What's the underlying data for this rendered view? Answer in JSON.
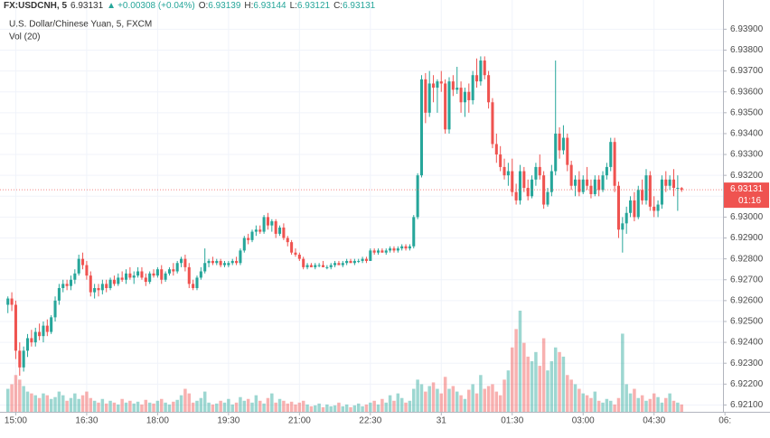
{
  "chart_data": {
    "type": "candlestick",
    "symbol": "FX:USDCNH, 5",
    "change": "+0.00308 (+0.04%)",
    "ohlc_labels": [
      "O:",
      "H:",
      "L:",
      "C:"
    ],
    "title": "U.S. Dollar/Chinese Yuan, 5, FXCM",
    "volume_label": "Vol (20)",
    "countdown": "01:16",
    "up_color": "#26a69a",
    "down_color": "#ef5350",
    "grid": true,
    "ylim": [
      6.9205,
      6.9404
    ],
    "yticks": [
      {
        "value": 6.921,
        "label": "6.92100"
      },
      {
        "value": 6.922,
        "label": "6.92200"
      },
      {
        "value": 6.923,
        "label": "6.92300"
      },
      {
        "value": 6.924,
        "label": "6.92400"
      },
      {
        "value": 6.925,
        "label": "6.92500"
      },
      {
        "value": 6.926,
        "label": "6.92600"
      },
      {
        "value": 6.927,
        "label": "6.92700"
      },
      {
        "value": 6.928,
        "label": "6.92800"
      },
      {
        "value": 6.929,
        "label": "6.92900"
      },
      {
        "value": 6.93,
        "label": "6.93000"
      },
      {
        "value": 6.931,
        "label": "6.93100"
      },
      {
        "value": 6.932,
        "label": "6.93200"
      },
      {
        "value": 6.933,
        "label": "6.93300"
      },
      {
        "value": 6.934,
        "label": "6.93400"
      },
      {
        "value": 6.935,
        "label": "6.93500"
      },
      {
        "value": 6.936,
        "label": "6.93600"
      },
      {
        "value": 6.937,
        "label": "6.93700"
      },
      {
        "value": 6.938,
        "label": "6.93800"
      },
      {
        "value": 6.939,
        "label": "6.93900"
      }
    ],
    "xlim": [
      -2,
      181.5
    ],
    "xticks": [
      {
        "value": 2,
        "label": "15:00"
      },
      {
        "value": 20,
        "label": "16:30"
      },
      {
        "value": 38,
        "label": "18:00"
      },
      {
        "value": 56,
        "label": "19:30"
      },
      {
        "value": 74,
        "label": "21:00"
      },
      {
        "value": 92,
        "label": "22:30"
      },
      {
        "value": 110,
        "label": "31"
      },
      {
        "value": 128,
        "label": "01:30"
      },
      {
        "value": 146,
        "label": "03:00"
      },
      {
        "value": 164,
        "label": "04:30"
      },
      {
        "value": 182,
        "label": "06:"
      }
    ],
    "candles": [
      [
        6.9258,
        6.9262,
        6.9254,
        6.9261
      ],
      [
        6.9261,
        6.9264,
        6.9255,
        6.9258
      ],
      [
        6.9258,
        6.926,
        6.9232,
        6.9236
      ],
      [
        6.9236,
        6.924,
        6.9224,
        6.9228
      ],
      [
        6.9228,
        6.9238,
        6.9226,
        6.9236
      ],
      [
        6.9236,
        6.9244,
        6.9233,
        6.9242
      ],
      [
        6.9242,
        6.9246,
        6.9238,
        6.924
      ],
      [
        6.924,
        6.9247,
        6.9238,
        6.9245
      ],
      [
        6.9245,
        6.9249,
        6.9241,
        6.9243
      ],
      [
        6.9243,
        6.925,
        6.924,
        6.9248
      ],
      [
        6.9248,
        6.9251,
        6.9243,
        6.9245
      ],
      [
        6.9245,
        6.9253,
        6.9244,
        6.9252
      ],
      [
        6.9252,
        6.9262,
        6.925,
        6.926
      ],
      [
        6.926,
        6.9268,
        6.9258,
        6.9266
      ],
      [
        6.9266,
        6.927,
        6.9264,
        6.9268
      ],
      [
        6.9268,
        6.927,
        6.9265,
        6.9267
      ],
      [
        6.9267,
        6.9272,
        6.9265,
        6.927
      ],
      [
        6.927,
        6.9275,
        6.9268,
        6.9273
      ],
      [
        6.9273,
        6.9282,
        6.9272,
        6.928
      ],
      [
        6.928,
        6.9283,
        6.9275,
        6.9277
      ],
      [
        6.9277,
        6.9279,
        6.927,
        6.9272
      ],
      [
        6.9272,
        6.9274,
        6.9262,
        6.9264
      ],
      [
        6.9264,
        6.9268,
        6.9261,
        6.9266
      ],
      [
        6.9266,
        6.9268,
        6.9262,
        6.9265
      ],
      [
        6.9265,
        6.927,
        6.9263,
        6.9268
      ],
      [
        6.9268,
        6.927,
        6.9264,
        6.9266
      ],
      [
        6.9266,
        6.9271,
        6.9265,
        6.927
      ],
      [
        6.927,
        6.9272,
        6.9267,
        6.9268
      ],
      [
        6.9268,
        6.9273,
        6.9267,
        6.9271
      ],
      [
        6.9271,
        6.9274,
        6.9269,
        6.927
      ],
      [
        6.927,
        6.9275,
        6.9268,
        6.9273
      ],
      [
        6.9273,
        6.9276,
        6.927,
        6.9271
      ],
      [
        6.9271,
        6.9274,
        6.9268,
        6.9272
      ],
      [
        6.9272,
        6.9276,
        6.9271,
        6.9274
      ],
      [
        6.9274,
        6.9276,
        6.927,
        6.9271
      ],
      [
        6.9271,
        6.9273,
        6.9267,
        6.9269
      ],
      [
        6.9269,
        6.9274,
        6.9268,
        6.9273
      ],
      [
        6.9273,
        6.9275,
        6.9271,
        6.9272
      ],
      [
        6.9272,
        6.9276,
        6.9271,
        6.9275
      ],
      [
        6.9275,
        6.9277,
        6.9268,
        6.927
      ],
      [
        6.927,
        6.9274,
        6.9269,
        6.9273
      ],
      [
        6.9273,
        6.9276,
        6.9272,
        6.9275
      ],
      [
        6.9275,
        6.9278,
        6.9272,
        6.9274
      ],
      [
        6.9274,
        6.9279,
        6.9273,
        6.9278
      ],
      [
        6.9278,
        6.9281,
        6.9276,
        6.928
      ],
      [
        6.928,
        6.9282,
        6.9274,
        6.9276
      ],
      [
        6.9276,
        6.9278,
        6.9266,
        6.9268
      ],
      [
        6.9268,
        6.927,
        6.9265,
        6.9266
      ],
      [
        6.9266,
        6.9272,
        6.9265,
        6.9271
      ],
      [
        6.9271,
        6.9276,
        6.927,
        6.9274
      ],
      [
        6.9274,
        6.9285,
        6.9273,
        6.9278
      ],
      [
        6.9278,
        6.928,
        6.9276,
        6.9279
      ],
      [
        6.9279,
        6.9281,
        6.9277,
        6.9278
      ],
      [
        6.9278,
        6.928,
        6.9277,
        6.9279
      ],
      [
        6.9279,
        6.928,
        6.9276,
        6.9277
      ],
      [
        6.9277,
        6.9279,
        6.9276,
        6.9278
      ],
      [
        6.9277,
        6.9279,
        6.9276,
        6.9278
      ],
      [
        6.9278,
        6.928,
        6.9277,
        6.9279
      ],
      [
        6.9279,
        6.9281,
        6.9277,
        6.9278
      ],
      [
        6.9278,
        6.9285,
        6.9277,
        6.9284
      ],
      [
        6.9284,
        6.9291,
        6.9283,
        6.929
      ],
      [
        6.929,
        6.9292,
        6.9287,
        6.9289
      ],
      [
        6.9289,
        6.9294,
        6.9288,
        6.9293
      ],
      [
        6.9293,
        6.9296,
        6.9291,
        6.9294
      ],
      [
        6.9294,
        6.9296,
        6.9292,
        6.9293
      ],
      [
        6.9293,
        6.9301,
        6.9292,
        6.93
      ],
      [
        6.93,
        6.9302,
        6.9294,
        6.9296
      ],
      [
        6.9296,
        6.9299,
        6.9293,
        6.9298
      ],
      [
        6.9298,
        6.9299,
        6.929,
        6.9292
      ],
      [
        6.9292,
        6.9296,
        6.9291,
        6.9295
      ],
      [
        6.9295,
        6.9297,
        6.9289,
        6.929
      ],
      [
        6.929,
        6.9291,
        6.9286,
        6.9288
      ],
      [
        6.9288,
        6.9289,
        6.9282,
        6.9283
      ],
      [
        6.9283,
        6.9285,
        6.9281,
        6.9282
      ],
      [
        6.9282,
        6.9283,
        6.9279,
        6.928
      ],
      [
        6.928,
        6.9281,
        6.9275,
        6.9276
      ],
      [
        6.9276,
        6.9278,
        6.9275,
        6.9277
      ],
      [
        6.9277,
        6.9278,
        6.9276,
        6.9276
      ],
      [
        6.9276,
        6.9278,
        6.9275,
        6.9277
      ],
      [
        6.9277,
        6.9278,
        6.9276,
        6.9277
      ],
      [
        6.9277,
        6.9279,
        6.9276,
        6.9276
      ],
      [
        6.9276,
        6.9277,
        6.9275,
        6.9276
      ],
      [
        6.9276,
        6.9278,
        6.9275,
        6.9277
      ],
      [
        6.9277,
        6.9279,
        6.9276,
        6.9278
      ],
      [
        6.9278,
        6.9279,
        6.9277,
        6.9277
      ],
      [
        6.9277,
        6.9279,
        6.9276,
        6.9278
      ],
      [
        6.9278,
        6.928,
        6.9277,
        6.9279
      ],
      [
        6.9279,
        6.928,
        6.9278,
        6.9278
      ],
      [
        6.9278,
        6.928,
        6.9277,
        6.9279
      ],
      [
        6.9279,
        6.928,
        6.9278,
        6.9279
      ],
      [
        6.9279,
        6.9281,
        6.9278,
        6.928
      ],
      [
        6.928,
        6.9281,
        6.9278,
        6.9279
      ],
      [
        6.9279,
        6.9285,
        6.9279,
        6.9284
      ],
      [
        6.9284,
        6.9285,
        6.9282,
        6.9283
      ],
      [
        6.9283,
        6.9285,
        6.9282,
        6.9284
      ],
      [
        6.9284,
        6.9285,
        6.9283,
        6.9283
      ],
      [
        6.9283,
        6.9285,
        6.9282,
        6.9284
      ],
      [
        6.9284,
        6.9286,
        6.9283,
        6.9285
      ],
      [
        6.9285,
        6.9286,
        6.9283,
        6.9284
      ],
      [
        6.9284,
        6.9286,
        6.9283,
        6.9285
      ],
      [
        6.9285,
        6.9287,
        6.9284,
        6.9286
      ],
      [
        6.9286,
        6.9287,
        6.9284,
        6.9285
      ],
      [
        6.9285,
        6.9287,
        6.9284,
        6.9286
      ],
      [
        6.9286,
        6.9301,
        6.9285,
        6.93
      ],
      [
        6.93,
        6.9321,
        6.9299,
        6.932
      ],
      [
        6.932,
        6.9368,
        6.9319,
        6.9366
      ],
      [
        6.9366,
        6.9369,
        6.9345,
        6.935
      ],
      [
        6.935,
        6.937,
        6.9348,
        6.9364
      ],
      [
        6.9364,
        6.9368,
        6.9355,
        6.9362
      ],
      [
        6.9362,
        6.9366,
        6.935,
        6.9365
      ],
      [
        6.9365,
        6.937,
        6.936,
        6.9364
      ],
      [
        6.9364,
        6.9366,
        6.934,
        6.9342
      ],
      [
        6.9342,
        6.9367,
        6.934,
        6.9365
      ],
      [
        6.9365,
        6.9368,
        6.9358,
        6.9361
      ],
      [
        6.9361,
        6.9372,
        6.9359,
        6.9362
      ],
      [
        6.9362,
        6.9365,
        6.935,
        6.9355
      ],
      [
        6.9355,
        6.9362,
        6.9348,
        6.936
      ],
      [
        6.936,
        6.9364,
        6.935,
        6.9356
      ],
      [
        6.9356,
        6.937,
        6.9354,
        6.9368
      ],
      [
        6.9368,
        6.9376,
        6.9362,
        6.9365
      ],
      [
        6.9365,
        6.9377,
        6.9363,
        6.9375
      ],
      [
        6.9375,
        6.9377,
        6.9366,
        6.9368
      ],
      [
        6.9368,
        6.937,
        6.9352,
        6.9355
      ],
      [
        6.9355,
        6.9357,
        6.9333,
        6.9335
      ],
      [
        6.9335,
        6.934,
        6.9326,
        6.933
      ],
      [
        6.933,
        6.9334,
        6.9322,
        6.9324
      ],
      [
        6.9324,
        6.9328,
        6.9318,
        6.932
      ],
      [
        6.932,
        6.9326,
        6.9315,
        6.9322
      ],
      [
        6.9322,
        6.9328,
        6.931,
        6.9312
      ],
      [
        6.9312,
        6.9316,
        6.9306,
        6.9308
      ],
      [
        6.9308,
        6.9325,
        6.9306,
        6.9322
      ],
      [
        6.9322,
        6.9324,
        6.9312,
        6.9314
      ],
      [
        6.9314,
        6.9318,
        6.9308,
        6.931
      ],
      [
        6.931,
        6.932,
        6.9309,
        6.9318
      ],
      [
        6.9318,
        6.9326,
        6.9315,
        6.9324
      ],
      [
        6.9324,
        6.933,
        6.9318,
        6.932
      ],
      [
        6.932,
        6.9322,
        6.9304,
        6.9306
      ],
      [
        6.9306,
        6.9314,
        6.9305,
        6.9312
      ],
      [
        6.9312,
        6.9325,
        6.931,
        6.9322
      ],
      [
        6.9322,
        6.9375,
        6.932,
        6.934
      ],
      [
        6.934,
        6.9343,
        6.9328,
        6.9332
      ],
      [
        6.9332,
        6.9344,
        6.933,
        6.9338
      ],
      [
        6.9338,
        6.934,
        6.9322,
        6.9325
      ],
      [
        6.9325,
        6.9327,
        6.9313,
        6.9315
      ],
      [
        6.9315,
        6.932,
        6.931,
        6.9318
      ],
      [
        6.9318,
        6.9322,
        6.931,
        6.9312
      ],
      [
        6.9312,
        6.932,
        6.9311,
        6.9318
      ],
      [
        6.9318,
        6.9324,
        6.9313,
        6.9315
      ],
      [
        6.9315,
        6.9318,
        6.9309,
        6.9311
      ],
      [
        6.9311,
        6.932,
        6.931,
        6.9318
      ],
      [
        6.9318,
        6.932,
        6.931,
        6.9313
      ],
      [
        6.9313,
        6.9322,
        6.9312,
        6.932
      ],
      [
        6.932,
        6.9326,
        6.9318,
        6.9324
      ],
      [
        6.9324,
        6.9338,
        6.9322,
        6.9336
      ],
      [
        6.9336,
        6.9338,
        6.9312,
        6.9315
      ],
      [
        6.9315,
        6.9317,
        6.929,
        6.9294
      ],
      [
        6.9294,
        6.93,
        6.9283,
        6.9297
      ],
      [
        6.9297,
        6.9305,
        6.9292,
        6.9302
      ],
      [
        6.9302,
        6.931,
        6.93,
        6.9308
      ],
      [
        6.9308,
        6.9312,
        6.9298,
        6.93
      ],
      [
        6.93,
        6.9315,
        6.9299,
        6.9313
      ],
      [
        6.9313,
        6.9318,
        6.9306,
        6.9308
      ],
      [
        6.9308,
        6.9323,
        6.9306,
        6.932
      ],
      [
        6.932,
        6.9322,
        6.9303,
        6.9305
      ],
      [
        6.9305,
        6.931,
        6.93,
        6.9303
      ],
      [
        6.9303,
        6.9308,
        6.93,
        6.9306
      ],
      [
        6.9306,
        6.932,
        6.9304,
        6.9318
      ],
      [
        6.9318,
        6.9322,
        6.9312,
        6.9315
      ],
      [
        6.9315,
        6.932,
        6.9313,
        6.9318
      ],
      [
        6.9318,
        6.9323,
        6.931,
        6.9314
      ],
      [
        6.9314,
        6.932,
        6.9303,
        6.9314
      ],
      [
        6.93139,
        6.93144,
        6.93121,
        6.93131
      ]
    ],
    "volume": [
      25,
      30,
      40,
      35,
      28,
      22,
      20,
      18,
      15,
      20,
      18,
      14,
      16,
      22,
      18,
      12,
      15,
      20,
      14,
      18,
      22,
      15,
      12,
      10,
      14,
      9,
      12,
      10,
      8,
      14,
      10,
      12,
      9,
      11,
      8,
      13,
      10,
      9,
      12,
      14,
      10,
      8,
      11,
      13,
      18,
      25,
      20,
      10,
      12,
      15,
      22,
      10,
      8,
      9,
      12,
      10,
      14,
      8,
      10,
      16,
      12,
      14,
      10,
      18,
      12,
      9,
      15,
      20,
      10,
      14,
      12,
      9,
      11,
      8,
      10,
      12,
      8,
      6,
      7,
      9,
      5,
      8,
      6,
      7,
      10,
      6,
      8,
      5,
      7,
      9,
      6,
      8,
      10,
      12,
      8,
      14,
      10,
      18,
      12,
      20,
      15,
      10,
      12,
      25,
      35,
      30,
      22,
      28,
      32,
      25,
      20,
      38,
      25,
      28,
      22,
      18,
      14,
      24,
      30,
      20,
      40,
      25,
      28,
      30,
      22,
      18,
      35,
      45,
      70,
      90,
      110,
      75,
      60,
      55,
      65,
      50,
      80,
      45,
      55,
      70,
      65,
      60,
      40,
      35,
      30,
      25,
      20,
      18,
      15,
      22,
      12,
      10,
      14,
      12,
      8,
      15,
      85,
      30,
      20,
      25,
      15,
      18,
      12,
      14,
      20,
      16,
      10,
      15,
      20,
      12,
      10,
      8
    ]
  }
}
